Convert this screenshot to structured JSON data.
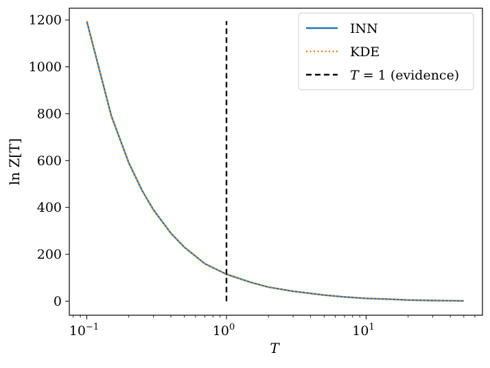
{
  "chart_data": {
    "type": "line",
    "xlabel": "T",
    "ylabel": "ln Z[T]",
    "xscale": "log",
    "xlim": [
      0.075,
      68
    ],
    "ylim": [
      -60,
      1250
    ],
    "grid": false,
    "legend_position": "top-right",
    "x_ticks": [
      {
        "value": 0.1,
        "base": "10",
        "exp": "−1"
      },
      {
        "value": 1,
        "base": "10",
        "exp": "0"
      },
      {
        "value": 10,
        "base": "10",
        "exp": "1"
      }
    ],
    "y_ticks": [
      0,
      200,
      400,
      600,
      800,
      1000,
      1200
    ],
    "series": [
      {
        "name": "INN",
        "style": "solid",
        "color": "#1f77b4",
        "x": [
          0.1,
          0.15,
          0.2,
          0.25,
          0.3,
          0.4,
          0.5,
          0.7,
          1.0,
          1.5,
          2,
          3,
          5,
          7,
          10,
          15,
          20,
          30,
          50
        ],
        "y": [
          1195,
          790,
          590,
          470,
          390,
          290,
          230,
          160,
          115,
          80,
          60,
          42,
          26,
          18,
          12,
          8,
          5,
          3,
          1
        ]
      },
      {
        "name": "KDE",
        "style": "dotted",
        "color": "#ff7f0e",
        "x": [
          0.1,
          0.15,
          0.2,
          0.25,
          0.3,
          0.4,
          0.5,
          0.7,
          1.0,
          1.5,
          2,
          3,
          5,
          7,
          10,
          15,
          20,
          30,
          50
        ],
        "y": [
          1195,
          790,
          590,
          470,
          390,
          290,
          230,
          160,
          115,
          80,
          60,
          42,
          26,
          18,
          12,
          8,
          5,
          3,
          1
        ]
      },
      {
        "name": "T = 1 (evidence)",
        "style": "dashed",
        "color": "#000000",
        "x": [
          1,
          1
        ],
        "y": [
          0,
          1195
        ]
      }
    ],
    "legend": [
      {
        "style": "solid",
        "color": "#1f77b4",
        "text": "INN"
      },
      {
        "style": "dotted",
        "color": "#ff7f0e",
        "text": "KDE"
      },
      {
        "style": "dashed",
        "color": "#000000",
        "pre": "T",
        "text": " = 1 (evidence)"
      }
    ]
  }
}
